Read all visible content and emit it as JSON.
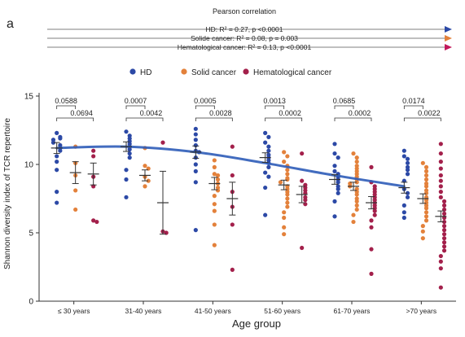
{
  "chart_data": {
    "type": "scatter",
    "panel_label": "a",
    "pearson": {
      "title": "Pearson correlation",
      "lines": [
        {
          "text": "HD: R² = 0.27,  p <0.0001",
          "color": "#2c49a6"
        },
        {
          "text": "Solide cancer: R² = 0.08,  p = 0.003",
          "color": "#e3813b"
        },
        {
          "text": "Hematological cancer: R² = 0.13, p <0.0001",
          "color": "#c2185b"
        }
      ]
    },
    "legend": {
      "placement": "top-center",
      "items": [
        {
          "label": "HD",
          "color": "#2c49a6"
        },
        {
          "label": "Solid cancer",
          "color": "#e3813b"
        },
        {
          "label": "Hematological cancer",
          "color": "#a3204b"
        }
      ]
    },
    "xlabel": "Age group",
    "ylabel": "Shannon diversity index of TCR repertoire",
    "ylim": [
      0,
      15
    ],
    "yticks": [
      0,
      5,
      10,
      15
    ],
    "categories": [
      "≤ 30 years",
      "31-40 years",
      "41-50 years",
      "51-60 years",
      "61-70 years",
      ">70 years"
    ],
    "series": [
      {
        "name": "HD",
        "color": "#2c49a6",
        "values": [
          [
            12.3,
            12.0,
            11.9,
            11.8,
            11.6,
            11.4,
            11.2,
            11.0,
            10.6,
            10.2,
            9.6,
            8.0,
            7.2
          ],
          [
            12.4,
            12.1,
            11.9,
            11.7,
            11.5,
            11.3,
            11.1,
            10.8,
            10.5,
            9.6,
            8.9,
            7.6
          ],
          [
            12.6,
            12.2,
            11.8,
            11.4,
            11.0,
            10.9,
            10.5,
            10.0,
            9.5,
            8.7,
            5.2
          ],
          [
            12.3,
            12.0,
            11.6,
            11.3,
            11.0,
            10.7,
            10.5,
            10.3,
            10.1,
            9.8,
            9.4,
            9.1,
            8.3,
            6.3
          ],
          [
            11.5,
            10.8,
            10.5,
            9.9,
            9.5,
            9.3,
            9.1,
            8.9,
            8.7,
            8.4,
            8.2,
            7.9,
            7.3,
            6.2
          ],
          [
            11.0,
            10.6,
            10.4,
            10.1,
            9.8,
            9.6,
            9.3,
            8.8,
            8.2,
            7.9,
            7.6,
            7.0,
            6.5,
            6.1
          ]
        ],
        "mean": [
          11.2,
          11.3,
          10.9,
          10.5,
          8.9,
          8.3
        ],
        "sem": [
          0.4,
          0.35,
          0.45,
          0.35,
          0.35,
          0.4
        ]
      },
      {
        "name": "Solid cancer",
        "color": "#e3813b",
        "values": [
          [
            11.3,
            10.1,
            9.2,
            8.1,
            6.7
          ],
          [
            11.2,
            9.9,
            9.7,
            9.1,
            8.8,
            8.4
          ],
          [
            10.3,
            9.8,
            9.3,
            9.2,
            8.9,
            8.6,
            8.3,
            8.1,
            7.7,
            7.1,
            6.6,
            5.6,
            4.1
          ],
          [
            10.9,
            10.6,
            10.2,
            9.9,
            9.6,
            9.3,
            9.0,
            8.9,
            8.7,
            8.4,
            8.2,
            8.0,
            7.8,
            7.5,
            7.2,
            6.9,
            6.5,
            6.1,
            5.4,
            4.9
          ],
          [
            10.8,
            10.5,
            10.2,
            9.9,
            9.7,
            9.5,
            9.3,
            9.1,
            8.9,
            8.7,
            8.6,
            8.4,
            8.2,
            8.0,
            7.8,
            7.5,
            7.3,
            7.0,
            6.7,
            6.3,
            5.8
          ],
          [
            10.1,
            9.8,
            9.5,
            9.2,
            8.9,
            8.6,
            8.4,
            8.1,
            7.9,
            7.6,
            7.4,
            7.2,
            7.0,
            6.8,
            6.5,
            6.2,
            5.9,
            5.5,
            5.1,
            4.6
          ]
        ],
        "mean": [
          9.4,
          9.2,
          8.6,
          8.5,
          8.4,
          7.5
        ],
        "sem": [
          0.8,
          0.4,
          0.45,
          0.35,
          0.3,
          0.35
        ]
      },
      {
        "name": "Hematological cancer",
        "color": "#a3204b",
        "values": [
          [
            11.0,
            10.6,
            9.1,
            8.4,
            5.9,
            5.8
          ],
          [
            11.6,
            5.1,
            5.0
          ],
          [
            11.3,
            9.2,
            8.0,
            6.9,
            5.6,
            2.3
          ],
          [
            10.8,
            8.8,
            8.5,
            8.3,
            8.1,
            7.9,
            7.6,
            7.4,
            7.1,
            3.9
          ],
          [
            9.8,
            8.7,
            8.4,
            8.2,
            8.0,
            7.8,
            7.6,
            7.4,
            7.2,
            7.0,
            6.8,
            6.6,
            6.3,
            5.9,
            5.4,
            3.8,
            2.0
          ],
          [
            11.5,
            10.8,
            10.2,
            9.7,
            9.2,
            8.8,
            8.4,
            8.0,
            7.6,
            7.3,
            7.0,
            6.7,
            6.4,
            6.1,
            5.8,
            5.5,
            5.2,
            4.9,
            4.6,
            4.3,
            4.0,
            3.7,
            3.3,
            2.9,
            2.4,
            1.0
          ]
        ],
        "mean": [
          9.3,
          7.2,
          7.5,
          7.8,
          7.2,
          6.2
        ],
        "sem": [
          0.8,
          2.3,
          1.2,
          0.6,
          0.45,
          0.4
        ]
      }
    ],
    "trend_line": {
      "series": "HD",
      "color": "#2e5cb8",
      "values": [
        11.2,
        11.3,
        10.9,
        10.1,
        9.2,
        8.4
      ]
    },
    "comparisons": [
      {
        "group": 0,
        "upper": "0.0588",
        "lower": "0.0694"
      },
      {
        "group": 1,
        "upper": "0.0007",
        "lower": "0.0042"
      },
      {
        "group": 2,
        "upper": "0.0005",
        "lower": "0.0028"
      },
      {
        "group": 3,
        "upper": "0.0013",
        "lower": "0.0002"
      },
      {
        "group": 4,
        "upper": "0.0685",
        "lower": "0.0002"
      },
      {
        "group": 5,
        "upper": "0.0174",
        "lower": "0.0022"
      }
    ]
  }
}
